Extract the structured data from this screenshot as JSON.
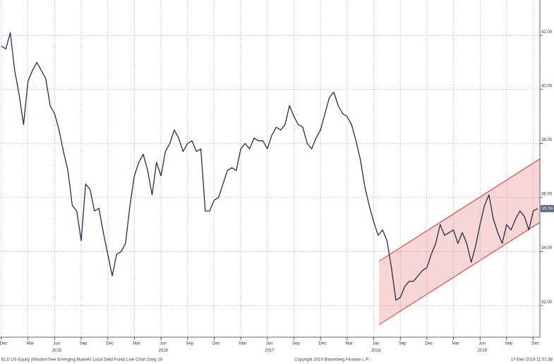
{
  "chart_data": {
    "type": "line",
    "series": [
      {
        "name": "ELD US Equity",
        "color": "#1f2d4e",
        "values": [
          41.6,
          41.5,
          42.1,
          40.7,
          39.8,
          38.7,
          40.3,
          40.7,
          41.0,
          40.7,
          40.4,
          39.4,
          39.1,
          38.5,
          37.7,
          37.0,
          35.7,
          35.5,
          34.4,
          36.5,
          36.3,
          35.5,
          35.6,
          34.7,
          33.9,
          33.1,
          33.9,
          34.0,
          34.3,
          35.7,
          36.8,
          37.3,
          37.6,
          37.0,
          36.1,
          37.3,
          36.8,
          37.7,
          38.0,
          38.5,
          38.2,
          37.7,
          38.0,
          38.1,
          37.7,
          37.8,
          35.5,
          35.5,
          35.9,
          36.0,
          36.5,
          37.0,
          37.1,
          37.0,
          37.8,
          38.0,
          37.8,
          38.2,
          38.1,
          38.1,
          37.8,
          38.3,
          38.6,
          38.5,
          38.7,
          39.4,
          39.0,
          38.7,
          38.6,
          38.0,
          37.8,
          38.2,
          38.5,
          39.1,
          39.7,
          39.9,
          39.4,
          39.1,
          39.0,
          38.7,
          38.1,
          37.4,
          36.4,
          35.7,
          35.1,
          34.6,
          34.8,
          34.4,
          33.4,
          32.2,
          32.3,
          32.7,
          32.9,
          32.9,
          33.1,
          33.3,
          33.4,
          33.9,
          34.3,
          35.0,
          34.6,
          34.7,
          34.8,
          34.3,
          34.7,
          34.3,
          33.6,
          34.2,
          35.0,
          35.7,
          36.1,
          35.2,
          34.7,
          34.3,
          35.0,
          34.8,
          35.2,
          35.5,
          35.3,
          34.8,
          35.5,
          35.59
        ]
      }
    ],
    "xlim": [
      0,
      121.5
    ],
    "ylim": [
      30.83,
      43.31
    ],
    "yticks": [
      {
        "value": 32,
        "label": "32.00"
      },
      {
        "value": 34,
        "label": "34.00"
      },
      {
        "value": 36,
        "label": "36.00"
      },
      {
        "value": 38,
        "label": "38.00"
      },
      {
        "value": 40,
        "label": "40.00"
      },
      {
        "value": 42,
        "label": "42.00"
      }
    ],
    "xticks": [
      {
        "value": 0,
        "label": "Dec"
      },
      {
        "value": 6,
        "label": "Mar"
      },
      {
        "value": 12,
        "label": "Jun"
      },
      {
        "value": 18,
        "label": "Sep"
      },
      {
        "value": 24,
        "label": "Dec"
      },
      {
        "value": 30,
        "label": "Mar"
      },
      {
        "value": 36,
        "label": "Jun"
      },
      {
        "value": 42,
        "label": "Sep"
      },
      {
        "value": 48,
        "label": "Dec"
      },
      {
        "value": 54,
        "label": "Mar"
      },
      {
        "value": 60,
        "label": "Jun"
      },
      {
        "value": 66,
        "label": "Sep"
      },
      {
        "value": 72,
        "label": "Dec"
      },
      {
        "value": 78,
        "label": "Mar"
      },
      {
        "value": 84,
        "label": "Jun"
      },
      {
        "value": 90,
        "label": "Sep"
      },
      {
        "value": 96,
        "label": "Dec"
      },
      {
        "value": 102,
        "label": "Mar"
      },
      {
        "value": 108,
        "label": "Jun"
      },
      {
        "value": 114,
        "label": "Sep"
      },
      {
        "value": 120,
        "label": "Dec"
      }
    ],
    "year_labels": [
      {
        "value": 12.5,
        "label": "2015"
      },
      {
        "value": 36.5,
        "label": "2016"
      },
      {
        "value": 60.5,
        "label": "2017"
      },
      {
        "value": 84.5,
        "label": "2018"
      },
      {
        "value": 108.5,
        "label": "2019"
      }
    ],
    "last_price": {
      "value": 35.59,
      "label": "35.59"
    },
    "channel": {
      "x": [
        85.2,
        121.5
      ],
      "upper": [
        33.64,
        37.43
      ],
      "lower": [
        31.29,
        35.08
      ],
      "color": "#e03030"
    },
    "grid": true,
    "footer": {
      "left": "ELD US Equity (WisdomTree Emerging Markets Local Debt Fund) Line Chart  Daily 16",
      "center": "Copyright 2019 Bloomberg Finance L.P.",
      "right": "17-Dec-2019 11:01:48"
    }
  }
}
